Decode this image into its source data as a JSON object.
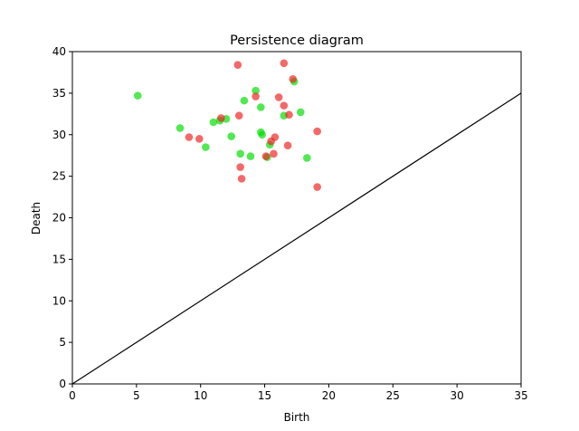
{
  "chart_data": {
    "type": "scatter",
    "title": "Persistence diagram",
    "xlabel": "Birth",
    "ylabel": "Death",
    "xlim": [
      0,
      35
    ],
    "ylim": [
      0,
      40
    ],
    "xticks": [
      "0",
      "5",
      "10",
      "15",
      "20",
      "25",
      "30",
      "35"
    ],
    "yticks": [
      "0",
      "5",
      "10",
      "15",
      "20",
      "25",
      "30",
      "35",
      "40"
    ],
    "grid": false,
    "legend": "none",
    "diagonal": {
      "from": [
        0,
        0
      ],
      "to": [
        35,
        35
      ],
      "color": "#000000"
    },
    "series": [
      {
        "color": "#00dd00",
        "points": [
          {
            "x": 5.1,
            "y": 34.7
          },
          {
            "x": 8.4,
            "y": 30.8
          },
          {
            "x": 10.4,
            "y": 28.5
          },
          {
            "x": 11.0,
            "y": 31.5
          },
          {
            "x": 11.5,
            "y": 31.7
          },
          {
            "x": 12.0,
            "y": 31.9
          },
          {
            "x": 12.4,
            "y": 29.8
          },
          {
            "x": 13.1,
            "y": 27.7
          },
          {
            "x": 13.4,
            "y": 34.1
          },
          {
            "x": 13.9,
            "y": 27.4
          },
          {
            "x": 14.3,
            "y": 35.3
          },
          {
            "x": 14.7,
            "y": 33.3
          },
          {
            "x": 14.7,
            "y": 30.3
          },
          {
            "x": 14.8,
            "y": 30.0
          },
          {
            "x": 15.2,
            "y": 27.3
          },
          {
            "x": 15.4,
            "y": 28.8
          },
          {
            "x": 16.5,
            "y": 32.3
          },
          {
            "x": 17.3,
            "y": 36.4
          },
          {
            "x": 17.8,
            "y": 32.7
          },
          {
            "x": 18.3,
            "y": 27.2
          }
        ]
      },
      {
        "color": "#ee2222",
        "points": [
          {
            "x": 9.1,
            "y": 29.7
          },
          {
            "x": 9.9,
            "y": 29.5
          },
          {
            "x": 11.6,
            "y": 32.0
          },
          {
            "x": 12.9,
            "y": 38.4
          },
          {
            "x": 13.0,
            "y": 32.3
          },
          {
            "x": 13.1,
            "y": 26.1
          },
          {
            "x": 13.2,
            "y": 24.7
          },
          {
            "x": 14.3,
            "y": 34.6
          },
          {
            "x": 15.1,
            "y": 27.4
          },
          {
            "x": 15.5,
            "y": 29.2
          },
          {
            "x": 15.7,
            "y": 27.7
          },
          {
            "x": 15.8,
            "y": 29.7
          },
          {
            "x": 16.1,
            "y": 34.5
          },
          {
            "x": 16.5,
            "y": 38.6
          },
          {
            "x": 16.5,
            "y": 33.5
          },
          {
            "x": 16.8,
            "y": 28.7
          },
          {
            "x": 16.9,
            "y": 32.4
          },
          {
            "x": 17.2,
            "y": 36.7
          },
          {
            "x": 19.1,
            "y": 30.4
          },
          {
            "x": 19.1,
            "y": 23.7
          }
        ]
      }
    ]
  }
}
